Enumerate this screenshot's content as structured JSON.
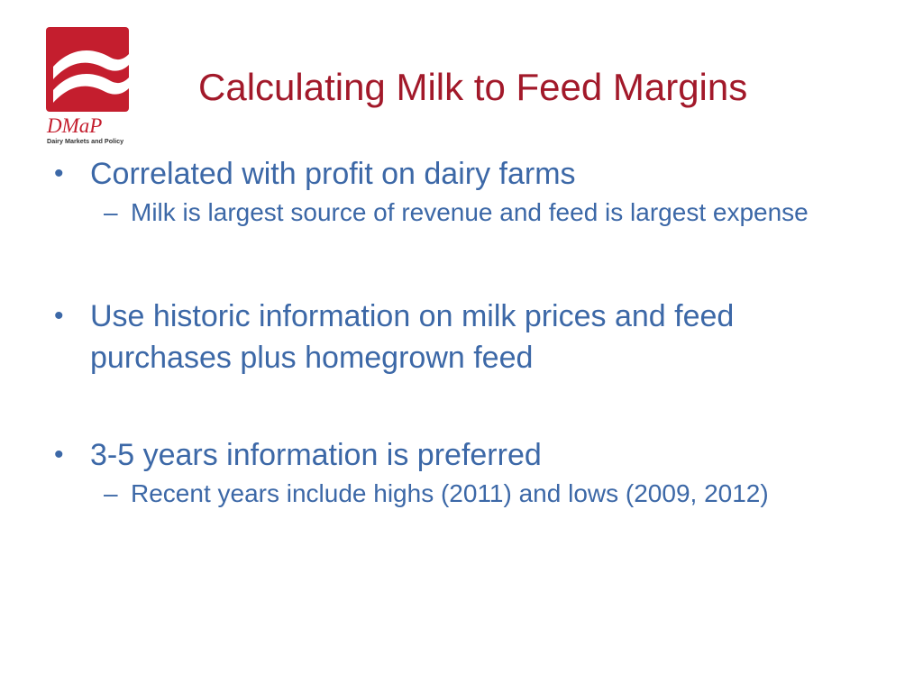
{
  "logo": {
    "wordmark": "DMaP",
    "tagline": "Dairy Markets and Policy",
    "colors": {
      "primary": "#c41e2e",
      "wave": "#ffffff"
    }
  },
  "title": "Calculating Milk to Feed Margins",
  "colors": {
    "title": "#a2192a",
    "body": "#3c68a7"
  },
  "bullets": [
    {
      "marker": "•",
      "text": "Correlated with profit on dairy farms",
      "subs": [
        {
          "marker": "–",
          "text": "Milk is largest source of revenue and feed is largest expense"
        }
      ]
    },
    {
      "marker": "•",
      "text": "Use historic information on milk prices and feed purchases plus homegrown feed",
      "subs": []
    },
    {
      "marker": "•",
      "text": "3-5 years information is preferred",
      "subs": [
        {
          "marker": "–",
          "text": "Recent years include highs (2011) and lows (2009, 2012)"
        }
      ]
    }
  ]
}
